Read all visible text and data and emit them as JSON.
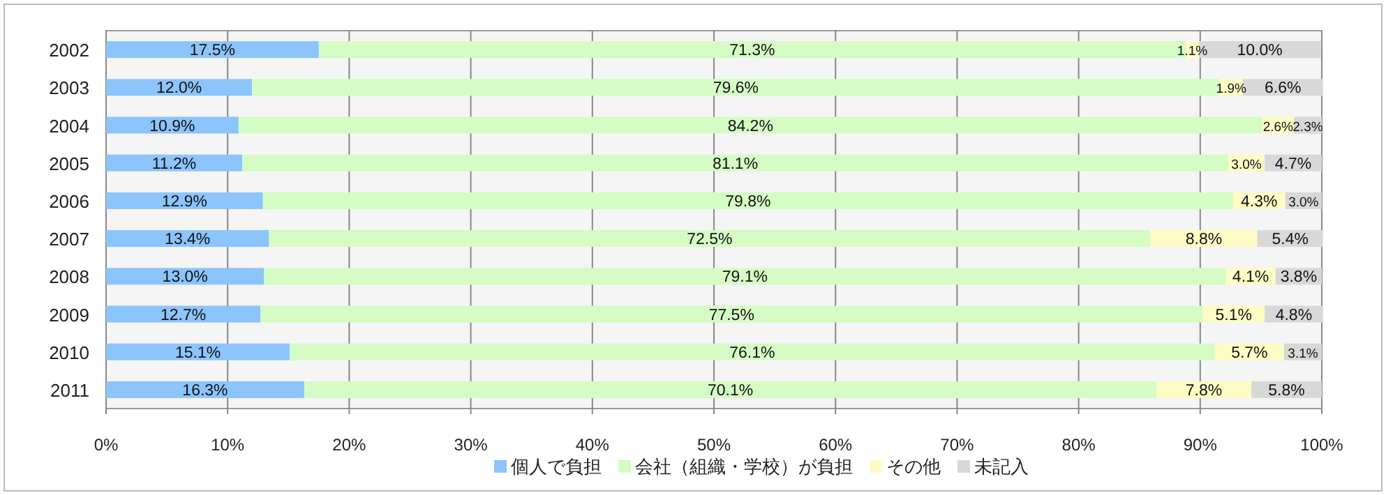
{
  "chart_data": {
    "type": "bar",
    "orientation": "horizontal",
    "stacked": true,
    "categories": [
      "2002",
      "2003",
      "2004",
      "2005",
      "2006",
      "2007",
      "2008",
      "2009",
      "2010",
      "2011"
    ],
    "series": [
      {
        "name": "個人で負担",
        "color": "#8cc4fc",
        "values": [
          17.5,
          12.0,
          10.9,
          11.2,
          12.9,
          13.4,
          13.0,
          12.7,
          15.1,
          16.3
        ],
        "value_labels": [
          "17.5%",
          "12.0%",
          "10.9%",
          "11.2%",
          "12.9%",
          "13.4%",
          "13.0%",
          "12.7%",
          "15.1%",
          "16.3%"
        ]
      },
      {
        "name": "会社（組織・学校）が負担",
        "color": "#d4fcc4",
        "values": [
          71.3,
          79.6,
          84.2,
          81.1,
          79.8,
          72.5,
          79.1,
          77.5,
          76.1,
          70.1
        ],
        "value_labels": [
          "71.3%",
          "79.6%",
          "84.2%",
          "81.1%",
          "79.8%",
          "72.5%",
          "79.1%",
          "77.5%",
          "76.1%",
          "70.1%"
        ]
      },
      {
        "name": "その他",
        "color": "#fcfcc4",
        "values": [
          1.1,
          1.9,
          2.6,
          3.0,
          4.3,
          8.8,
          4.1,
          5.1,
          5.7,
          7.8
        ],
        "value_labels": [
          "1.1%",
          "1.9%",
          "2.6%",
          "3.0%",
          "4.3%",
          "8.8%",
          "4.1%",
          "5.1%",
          "5.7%",
          "7.8%"
        ]
      },
      {
        "name": "未記入",
        "color": "#d8d8d8",
        "values": [
          10.0,
          6.6,
          2.3,
          4.7,
          3.0,
          5.4,
          3.8,
          4.8,
          3.1,
          5.8
        ],
        "value_labels": [
          "10.0%",
          "6.6%",
          "2.3%",
          "4.7%",
          "3.0%",
          "5.4%",
          "3.8%",
          "4.8%",
          "3.1%",
          "5.8%"
        ]
      }
    ],
    "xlim": [
      0,
      100
    ],
    "xticks": [
      {
        "value": 0,
        "label": "0%"
      },
      {
        "value": 10,
        "label": "10%"
      },
      {
        "value": 20,
        "label": "20%"
      },
      {
        "value": 30,
        "label": "30%"
      },
      {
        "value": 40,
        "label": "40%"
      },
      {
        "value": 50,
        "label": "50%"
      },
      {
        "value": 60,
        "label": "60%"
      },
      {
        "value": 70,
        "label": "70%"
      },
      {
        "value": 80,
        "label": "80%"
      },
      {
        "value": 90,
        "label": "90%"
      },
      {
        "value": 100,
        "label": "100%"
      }
    ],
    "grid": "x",
    "legend": "bottom"
  }
}
